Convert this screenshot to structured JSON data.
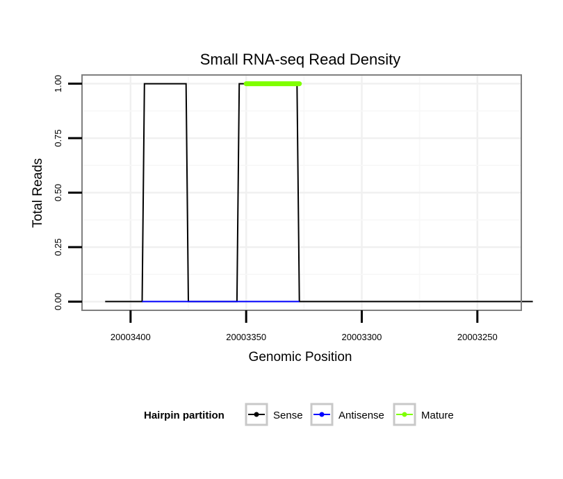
{
  "chart_data": {
    "type": "line",
    "title": "Small RNA-seq Read Density",
    "xlabel": "Genomic Position",
    "ylabel": "Total Reads",
    "x_reversed": true,
    "xlim": [
      20003421,
      20003231
    ],
    "ylim": [
      -0.04,
      1.04
    ],
    "x_ticks": [
      20003400,
      20003350,
      20003300,
      20003250
    ],
    "x_tick_labels": [
      "20003400",
      "20003350",
      "20003300",
      "20003250"
    ],
    "y_ticks": [
      0,
      0.25,
      0.5,
      0.75,
      1.0
    ],
    "y_tick_labels": [
      "0.00",
      "0.25",
      "0.50",
      "0.75",
      "1.00"
    ],
    "grid": true,
    "legend": {
      "title": "Hairpin partition",
      "position": "bottom",
      "entries": [
        "Sense",
        "Antisense",
        "Mature"
      ]
    },
    "series": [
      {
        "name": "Sense",
        "color": "#000000",
        "x": [
          20003411,
          20003395,
          20003394,
          20003376,
          20003375,
          20003354,
          20003353,
          20003328,
          20003327,
          20003226
        ],
        "y": [
          0,
          0,
          1,
          1,
          0,
          0,
          1,
          1,
          0,
          0
        ]
      },
      {
        "name": "Antisense",
        "color": "#0000ff",
        "x": [
          20003395,
          20003375,
          20003354,
          20003327
        ],
        "y": [
          0,
          0,
          0,
          0
        ]
      },
      {
        "name": "Mature",
        "color": "#7fff00",
        "x": [
          20003350,
          20003327
        ],
        "y": [
          1,
          1
        ]
      }
    ]
  }
}
